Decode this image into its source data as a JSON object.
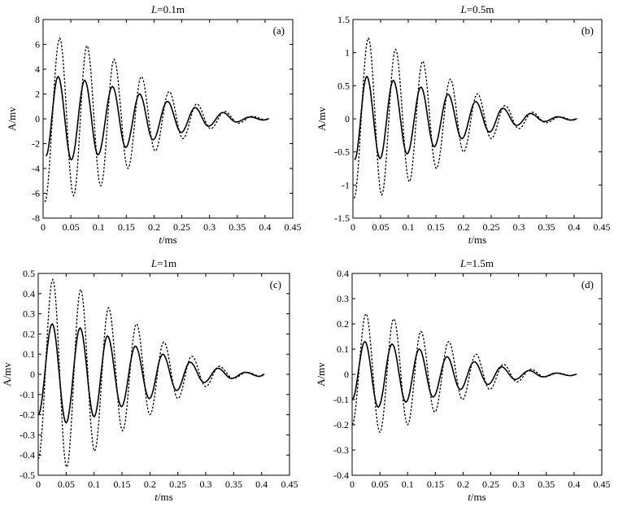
{
  "figure": {
    "background": "#ffffff",
    "line_color": "#000000"
  },
  "chart_data": [
    {
      "type": "line",
      "title_prefix": "L",
      "title_value": "=0.1m",
      "panel_label": "(a)",
      "xlabel_var": "t",
      "xlabel_unit": "/ms",
      "ylabel": "A/mv",
      "xlim": [
        0,
        0.45
      ],
      "ylim": [
        -8,
        8
      ],
      "xticks": [
        0,
        0.05,
        0.1,
        0.15,
        0.2,
        0.25,
        0.3,
        0.35,
        0.4,
        0.45
      ],
      "xtick_labels": [
        "0",
        "0.05",
        "0.1",
        "0.15",
        "0.2",
        "0.25",
        "0.3",
        "0.35",
        "0.4",
        "0.45"
      ],
      "yticks": [
        -8,
        -6,
        -4,
        -2,
        0,
        2,
        4,
        6,
        8
      ],
      "ytick_labels": [
        "-8",
        "-6",
        "-4",
        "-2",
        "0",
        "2",
        "4",
        "6",
        "8"
      ],
      "grid": false,
      "series": [
        {
          "style": "solid",
          "x": [
            0.005,
            0.027,
            0.051,
            0.075,
            0.099,
            0.125,
            0.149,
            0.174,
            0.198,
            0.224,
            0.249,
            0.274,
            0.298,
            0.324,
            0.348,
            0.373,
            0.397,
            0.407
          ],
          "y": [
            -3.0,
            3.4,
            -3.3,
            3.1,
            -2.9,
            2.6,
            -2.3,
            2.0,
            -1.7,
            1.4,
            -1.1,
            0.9,
            -0.6,
            0.5,
            -0.25,
            0.15,
            -0.1,
            0.0
          ]
        },
        {
          "style": "dotted",
          "x": [
            0.003,
            0.03,
            0.055,
            0.079,
            0.104,
            0.128,
            0.153,
            0.177,
            0.202,
            0.227,
            0.252,
            0.277,
            0.302,
            0.327,
            0.352,
            0.377,
            0.402,
            0.407
          ],
          "y": [
            -6.7,
            6.5,
            -6.2,
            5.9,
            -5.4,
            4.8,
            -4.0,
            3.4,
            -2.6,
            2.2,
            -1.6,
            1.2,
            -0.8,
            0.6,
            -0.35,
            0.2,
            -0.08,
            0.0
          ]
        }
      ]
    },
    {
      "type": "line",
      "title_prefix": "L",
      "title_value": "=0.5m",
      "panel_label": "(b)",
      "xlabel_var": "t",
      "xlabel_unit": "/ms",
      "ylabel": "A/mv",
      "xlim": [
        0,
        0.45
      ],
      "ylim": [
        -1.5,
        1.5
      ],
      "xticks": [
        0,
        0.05,
        0.1,
        0.15,
        0.2,
        0.25,
        0.3,
        0.35,
        0.4,
        0.45
      ],
      "xtick_labels": [
        "0",
        "0.05",
        "0.1",
        "0.15",
        "0.2",
        "0.25",
        "0.3",
        "0.35",
        "0.4",
        "0.45"
      ],
      "yticks": [
        -1.5,
        -1,
        -0.5,
        0,
        0.5,
        1,
        1.5
      ],
      "ytick_labels": [
        "-1.5",
        "-1",
        "-0.5",
        "0",
        "0.5",
        "1",
        "1.5"
      ],
      "grid": false,
      "series": [
        {
          "style": "solid",
          "x": [
            0.003,
            0.025,
            0.049,
            0.073,
            0.098,
            0.123,
            0.147,
            0.172,
            0.197,
            0.222,
            0.247,
            0.271,
            0.296,
            0.321,
            0.346,
            0.37,
            0.395,
            0.405
          ],
          "y": [
            -0.62,
            0.64,
            -0.6,
            0.58,
            -0.53,
            0.48,
            -0.42,
            0.37,
            -0.3,
            0.26,
            -0.2,
            0.16,
            -0.1,
            0.08,
            -0.04,
            0.03,
            -0.02,
            0.0
          ]
        },
        {
          "style": "dotted",
          "x": [
            0.002,
            0.028,
            0.052,
            0.077,
            0.102,
            0.126,
            0.151,
            0.176,
            0.2,
            0.225,
            0.25,
            0.275,
            0.3,
            0.324,
            0.349,
            0.374,
            0.399,
            0.405
          ],
          "y": [
            -1.2,
            1.22,
            -1.15,
            1.05,
            -0.95,
            0.87,
            -0.75,
            0.6,
            -0.5,
            0.38,
            -0.3,
            0.2,
            -0.15,
            0.1,
            -0.06,
            0.03,
            -0.02,
            0.0
          ]
        }
      ]
    },
    {
      "type": "line",
      "title_prefix": "L",
      "title_value": "=1m",
      "panel_label": "(c)",
      "xlabel_var": "t",
      "xlabel_unit": "/ms",
      "ylabel": "A/mv",
      "xlim": [
        0,
        0.45
      ],
      "ylim": [
        -0.5,
        0.5
      ],
      "xticks": [
        0,
        0.05,
        0.1,
        0.15,
        0.2,
        0.25,
        0.3,
        0.35,
        0.4,
        0.45
      ],
      "xtick_labels": [
        "0",
        "0.05",
        "0.1",
        "0.15",
        "0.2",
        "0.25",
        "0.3",
        "0.35",
        "0.4",
        "0.45"
      ],
      "yticks": [
        -0.5,
        -0.4,
        -0.3,
        -0.2,
        -0.1,
        0,
        0.1,
        0.2,
        0.3,
        0.4,
        0.5
      ],
      "ytick_labels": [
        "-0.5",
        "-0.4",
        "-0.3",
        "-0.2",
        "-0.1",
        "0",
        "0.1",
        "0.2",
        "0.3",
        "0.4",
        "0.5"
      ],
      "grid": false,
      "series": [
        {
          "style": "solid",
          "x": [
            0.0,
            0.025,
            0.05,
            0.075,
            0.1,
            0.124,
            0.149,
            0.174,
            0.199,
            0.223,
            0.248,
            0.272,
            0.297,
            0.322,
            0.346,
            0.371,
            0.396,
            0.405
          ],
          "y": [
            -0.2,
            0.25,
            -0.24,
            0.23,
            -0.21,
            0.19,
            -0.16,
            0.14,
            -0.12,
            0.1,
            -0.08,
            0.06,
            -0.04,
            0.03,
            -0.02,
            0.01,
            -0.01,
            0.0
          ]
        },
        {
          "style": "dotted",
          "x": [
            0.0,
            0.026,
            0.051,
            0.076,
            0.101,
            0.126,
            0.151,
            0.176,
            0.2,
            0.225,
            0.25,
            0.275,
            0.3,
            0.324,
            0.349,
            0.374,
            0.399,
            0.405
          ],
          "y": [
            -0.42,
            0.47,
            -0.46,
            0.42,
            -0.38,
            0.33,
            -0.28,
            0.25,
            -0.2,
            0.16,
            -0.12,
            0.09,
            -0.06,
            0.04,
            -0.02,
            0.01,
            -0.01,
            0.0
          ]
        }
      ]
    },
    {
      "type": "line",
      "title_prefix": "L",
      "title_value": "=1.5m",
      "panel_label": "(d)",
      "xlabel_var": "t",
      "xlabel_unit": "/ms",
      "ylabel": "A/mv",
      "xlim": [
        0,
        0.45
      ],
      "ylim": [
        -0.4,
        0.4
      ],
      "xticks": [
        0,
        0.05,
        0.1,
        0.15,
        0.2,
        0.25,
        0.3,
        0.35,
        0.4,
        0.45
      ],
      "xtick_labels": [
        "0",
        "0.05",
        "0.1",
        "0.15",
        "0.2",
        "0.25",
        "0.3",
        "0.35",
        "0.4",
        "0.45"
      ],
      "yticks": [
        -0.4,
        -0.3,
        -0.2,
        -0.1,
        0,
        0.1,
        0.2,
        0.3,
        0.4
      ],
      "ytick_labels": [
        "-0.4",
        "-0.3",
        "-0.2",
        "-0.1",
        "0",
        "0.1",
        "0.2",
        "0.3",
        "0.4"
      ],
      "grid": false,
      "series": [
        {
          "style": "solid",
          "x": [
            0.0,
            0.023,
            0.047,
            0.072,
            0.097,
            0.121,
            0.146,
            0.171,
            0.195,
            0.22,
            0.245,
            0.269,
            0.294,
            0.319,
            0.344,
            0.368,
            0.393,
            0.405
          ],
          "y": [
            -0.1,
            0.13,
            -0.13,
            0.12,
            -0.11,
            0.1,
            -0.09,
            0.07,
            -0.06,
            0.05,
            -0.04,
            0.03,
            -0.02,
            0.015,
            -0.01,
            0.005,
            -0.005,
            0.0
          ]
        },
        {
          "style": "dotted",
          "x": [
            0.0,
            0.025,
            0.05,
            0.075,
            0.1,
            0.124,
            0.149,
            0.174,
            0.199,
            0.223,
            0.248,
            0.273,
            0.297,
            0.322,
            0.347,
            0.371,
            0.396,
            0.405
          ],
          "y": [
            -0.2,
            0.24,
            -0.23,
            0.22,
            -0.2,
            0.17,
            -0.15,
            0.13,
            -0.1,
            0.08,
            -0.06,
            0.04,
            -0.03,
            0.02,
            -0.01,
            0.005,
            -0.005,
            0.0
          ]
        }
      ]
    }
  ]
}
